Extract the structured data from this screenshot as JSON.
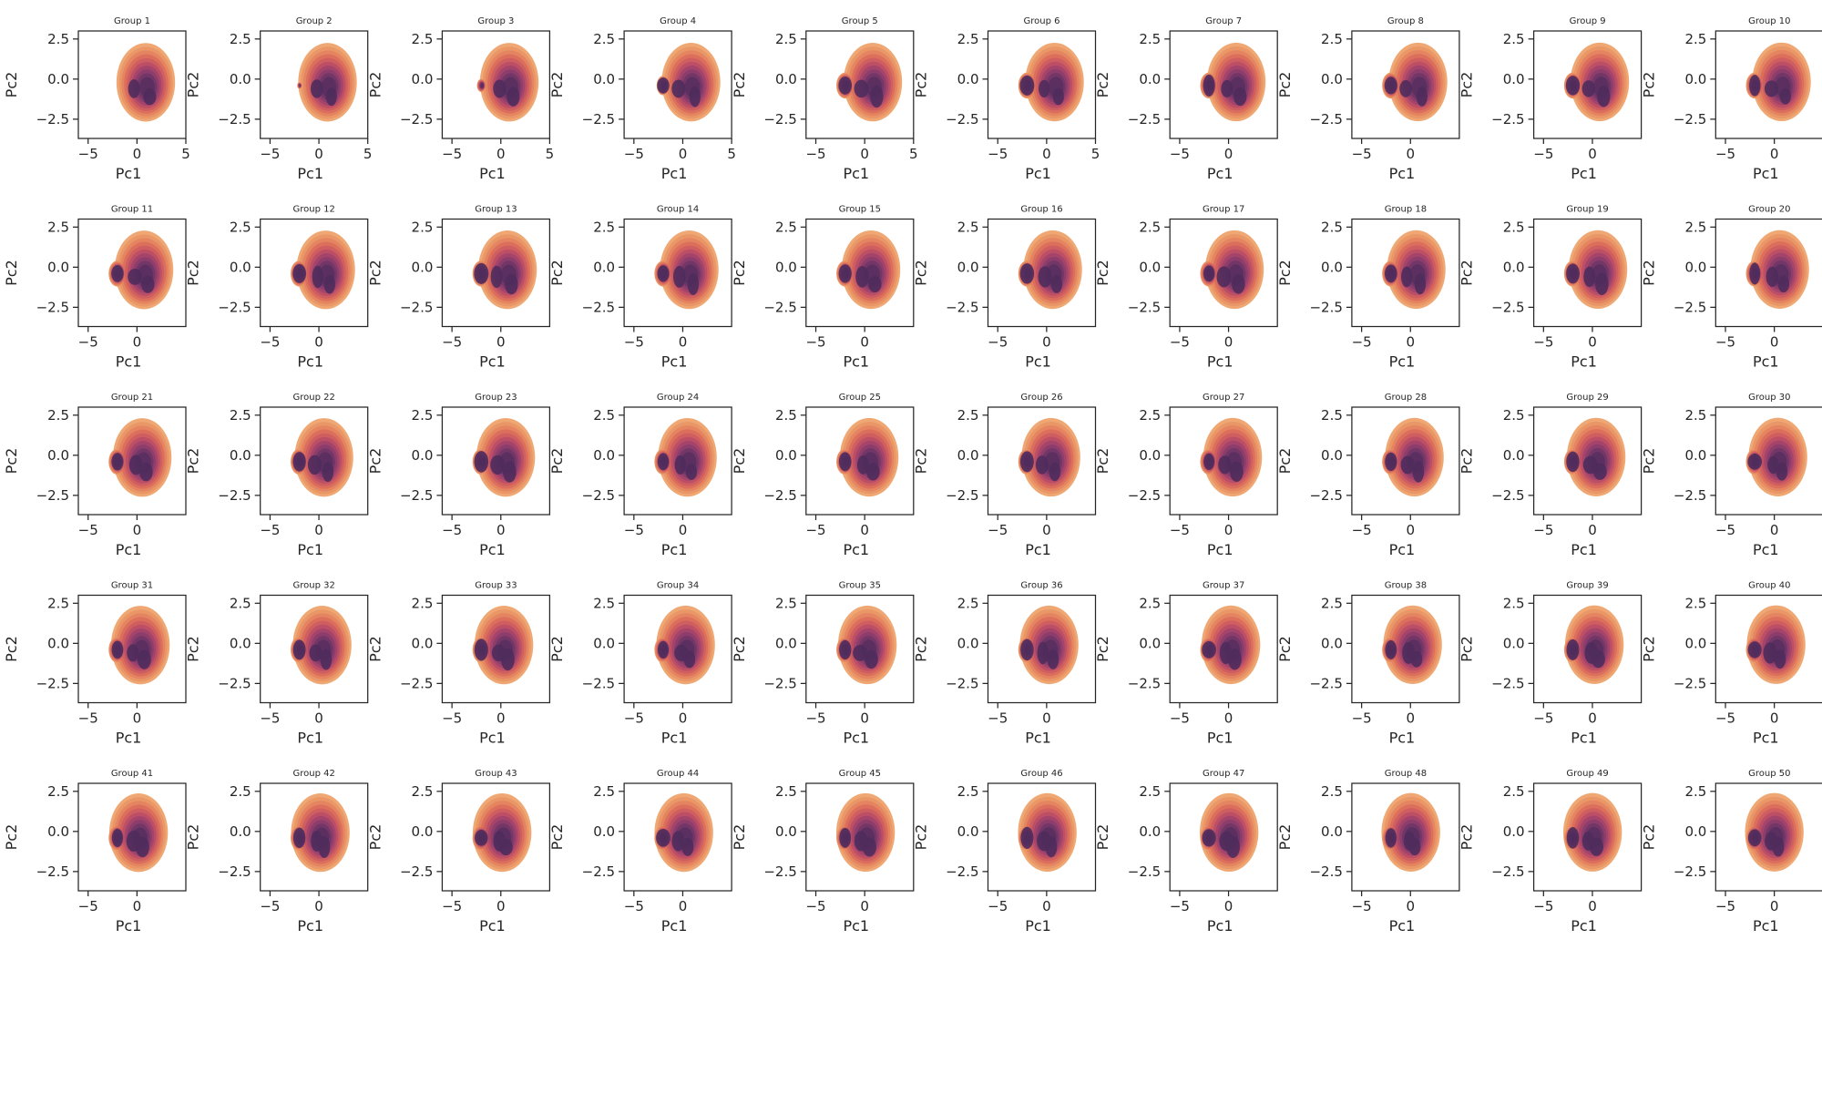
{
  "figure": {
    "palette": [
      "#efa873",
      "#ea9768",
      "#e48460",
      "#dc6f5c",
      "#cf5e60",
      "#bc4f66",
      "#a5446b",
      "#8c3d6c",
      "#723667",
      "#5b3061"
    ]
  },
  "chart_data": {
    "type": "kde-contour-grid",
    "rows": 5,
    "cols": 10,
    "xlabel": "Pc1",
    "ylabel": "Pc2",
    "xlim": [
      -6,
      5
    ],
    "ylim": [
      -3.7,
      3.0
    ],
    "yticks": [
      2.5,
      0.0,
      -2.5
    ],
    "yticklabels": [
      "2.5",
      "0.0",
      "−2.5"
    ],
    "xticks_wide": [
      -5,
      0,
      5
    ],
    "xticklabels_wide": [
      "−5",
      "0",
      "5"
    ],
    "xticks_narrow": [
      -5,
      0
    ],
    "xticklabels_narrow": [
      "−5",
      "0"
    ],
    "panels": [
      {
        "title": "Group 1"
      },
      {
        "title": "Group 2"
      },
      {
        "title": "Group 3"
      },
      {
        "title": "Group 4"
      },
      {
        "title": "Group 5"
      },
      {
        "title": "Group 6"
      },
      {
        "title": "Group 7"
      },
      {
        "title": "Group 8"
      },
      {
        "title": "Group 9"
      },
      {
        "title": "Group 10"
      },
      {
        "title": "Group 11"
      },
      {
        "title": "Group 12"
      },
      {
        "title": "Group 13"
      },
      {
        "title": "Group 14"
      },
      {
        "title": "Group 15"
      },
      {
        "title": "Group 16"
      },
      {
        "title": "Group 17"
      },
      {
        "title": "Group 18"
      },
      {
        "title": "Group 19"
      },
      {
        "title": "Group 20"
      },
      {
        "title": "Group 21"
      },
      {
        "title": "Group 22"
      },
      {
        "title": "Group 23"
      },
      {
        "title": "Group 24"
      },
      {
        "title": "Group 25"
      },
      {
        "title": "Group 26"
      },
      {
        "title": "Group 27"
      },
      {
        "title": "Group 28"
      },
      {
        "title": "Group 29"
      },
      {
        "title": "Group 30"
      },
      {
        "title": "Group 31"
      },
      {
        "title": "Group 32"
      },
      {
        "title": "Group 33"
      },
      {
        "title": "Group 34"
      },
      {
        "title": "Group 35"
      },
      {
        "title": "Group 36"
      },
      {
        "title": "Group 37"
      },
      {
        "title": "Group 38"
      },
      {
        "title": "Group 39"
      },
      {
        "title": "Group 40"
      },
      {
        "title": "Group 41"
      },
      {
        "title": "Group 42"
      },
      {
        "title": "Group 43"
      },
      {
        "title": "Group 44"
      },
      {
        "title": "Group 45"
      },
      {
        "title": "Group 46"
      },
      {
        "title": "Group 47"
      },
      {
        "title": "Group 48"
      },
      {
        "title": "Group 49"
      },
      {
        "title": "Group 50"
      }
    ]
  }
}
